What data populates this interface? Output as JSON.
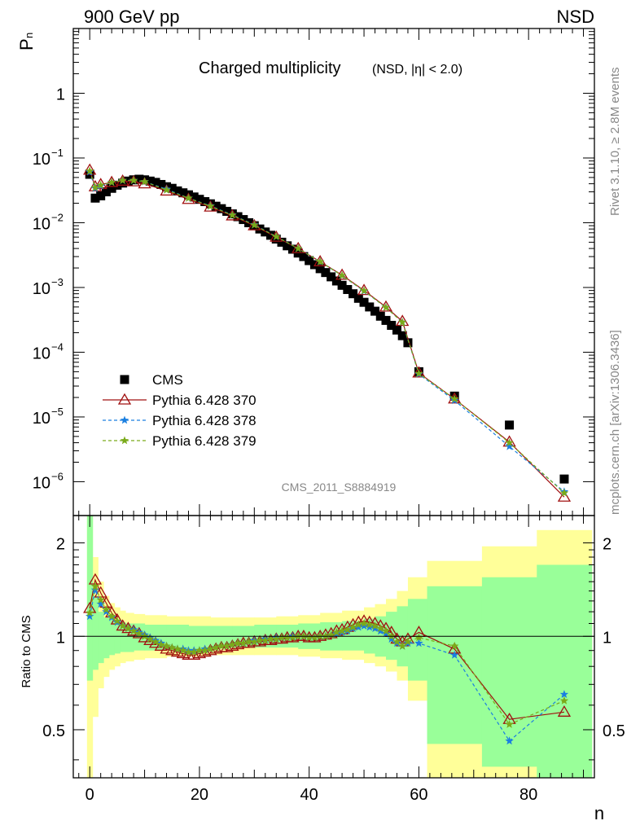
{
  "header": {
    "left": "900 GeV pp",
    "right": "NSD",
    "title_main": "Charged multiplicity",
    "title_sub": "(NSD, |η| < 2.0)",
    "ylabel_main": "P",
    "ylabel_sub": "n",
    "side_rivet": "Rivet 3.1.10, ≥ 2.8M events",
    "side_mcplots": "mcplots.cern.ch [arXiv:1306.3436]",
    "analysis_id": "CMS_2011_S8884919"
  },
  "colors": {
    "cms": "#000000",
    "p370": "#a01010",
    "p378": "#1a7fe0",
    "p379": "#7aaa1a",
    "band_yellow": "#ffff99",
    "band_green": "#99ff99"
  },
  "legend": [
    {
      "label": "CMS",
      "key": "cms",
      "marker": "square"
    },
    {
      "label": "Pythia 6.428 370",
      "key": "p370",
      "marker": "triangle"
    },
    {
      "label": "Pythia 6.428 378",
      "key": "p378",
      "marker": "star"
    },
    {
      "label": "Pythia 6.428 379",
      "key": "p379",
      "marker": "star"
    }
  ],
  "chart_data": [
    {
      "type": "scatter",
      "yscale": "log",
      "xlim": [
        -3,
        92
      ],
      "ylim": [
        3e-07,
        10
      ],
      "xticks": [
        0,
        20,
        40,
        60,
        80
      ],
      "xtick_labels": [
        "0",
        "20",
        "40",
        "60",
        "80"
      ],
      "yticks": [
        1,
        0.1,
        0.01,
        0.001,
        0.0001,
        1e-05,
        1e-06
      ],
      "ytick_base": [
        "1",
        "10",
        "10",
        "10",
        "10",
        "10",
        "10"
      ],
      "ytick_exp": [
        "",
        "−1",
        "−2",
        "−3",
        "−4",
        "−5",
        "−6"
      ],
      "series": [
        {
          "name": "CMS",
          "key": "cms",
          "x": [
            0,
            1,
            2,
            3,
            4,
            5,
            6,
            7,
            8,
            9,
            10,
            11,
            12,
            13,
            14,
            15,
            16,
            17,
            18,
            19,
            20,
            21,
            22,
            23,
            24,
            25,
            26,
            27,
            28,
            29,
            30,
            31,
            32,
            33,
            34,
            35,
            36,
            37,
            38,
            39,
            40,
            41,
            42,
            43,
            44,
            45,
            46,
            47,
            48,
            49,
            50,
            51,
            52,
            53,
            54,
            55,
            56,
            57,
            58,
            60,
            66.5,
            76.5,
            86.5
          ],
          "y": [
            0.056,
            0.024,
            0.026,
            0.03,
            0.034,
            0.038,
            0.041,
            0.044,
            0.046,
            0.047,
            0.046,
            0.044,
            0.042,
            0.039,
            0.036,
            0.034,
            0.031,
            0.029,
            0.027,
            0.025,
            0.023,
            0.0212,
            0.0196,
            0.018,
            0.0165,
            0.015,
            0.0137,
            0.0124,
            0.0112,
            0.01,
            0.009,
            0.008,
            0.0072,
            0.0064,
            0.0056,
            0.005,
            0.0044,
            0.0039,
            0.0034,
            0.003,
            0.0026,
            0.00225,
            0.00195,
            0.0017,
            0.00146,
            0.00126,
            0.00108,
            0.00093,
            0.0008,
            0.00068,
            0.00059,
            0.0005,
            0.00043,
            0.00036,
            0.00031,
            0.00026,
            0.00022,
            0.00018,
            0.00014,
            5e-05,
            2.1e-05,
            7.5e-06,
            1.1e-06
          ]
        },
        {
          "name": "Pythia 6.428 370",
          "key": "p370",
          "x": [
            0,
            1,
            2,
            4,
            6,
            8,
            10,
            14,
            18,
            22,
            26,
            30,
            34,
            38,
            42,
            46,
            50,
            54,
            57,
            60,
            66.5,
            76.5,
            86.5
          ],
          "y": [
            0.065,
            0.036,
            0.039,
            0.042,
            0.044,
            0.043,
            0.04,
            0.031,
            0.023,
            0.0175,
            0.0128,
            0.009,
            0.006,
            0.004,
            0.0025,
            0.00155,
            0.0009,
            0.0005,
            0.0003,
            4.8e-05,
            1.9e-05,
            4.1e-06,
            5.8e-07
          ]
        },
        {
          "name": "Pythia 6.428 378",
          "key": "p378",
          "x": [
            0,
            1,
            2,
            4,
            6,
            8,
            10,
            14,
            18,
            22,
            26,
            30,
            34,
            38,
            42,
            46,
            50,
            54,
            57,
            60,
            66.5,
            76.5,
            86.5
          ],
          "y": [
            0.061,
            0.034,
            0.037,
            0.042,
            0.045,
            0.045,
            0.043,
            0.033,
            0.024,
            0.0182,
            0.0132,
            0.0093,
            0.0061,
            0.004,
            0.0025,
            0.00152,
            0.00088,
            0.00049,
            0.00029,
            4.6e-05,
            1.8e-05,
            3.5e-06,
            7e-07
          ]
        },
        {
          "name": "Pythia 6.428 379",
          "key": "p379",
          "x": [
            0,
            1,
            2,
            4,
            6,
            8,
            10,
            14,
            18,
            22,
            26,
            30,
            34,
            38,
            42,
            46,
            50,
            54,
            57,
            60,
            66.5,
            76.5,
            86.5
          ],
          "y": [
            0.063,
            0.035,
            0.038,
            0.042,
            0.045,
            0.045,
            0.043,
            0.032,
            0.024,
            0.018,
            0.0131,
            0.0092,
            0.0061,
            0.004,
            0.0025,
            0.00153,
            0.00089,
            0.00049,
            0.00029,
            4.7e-05,
            1.9e-05,
            4e-06,
            6.7e-07
          ]
        }
      ]
    },
    {
      "type": "line",
      "ylabel": "Ratio to CMS",
      "xlabel": "n",
      "yscale": "log",
      "xlim": [
        -3,
        92
      ],
      "ylim": [
        0.35,
        2.45
      ],
      "xticks": [
        0,
        20,
        40,
        60,
        80
      ],
      "xtick_labels": [
        "0",
        "20",
        "40",
        "60",
        "80"
      ],
      "yticks": [
        0.5,
        1,
        2
      ],
      "ytick_labels": [
        "0.5",
        "1",
        "2"
      ],
      "bands": {
        "x_edges": [
          -0.5,
          0.5,
          1.5,
          2.5,
          3.5,
          4.5,
          5.5,
          6.5,
          8,
          10,
          14,
          18,
          22,
          26,
          30,
          34,
          38,
          42,
          46,
          50,
          52,
          54,
          56,
          58,
          61.5,
          71.5,
          81.5,
          91.5
        ],
        "yellow_lo": [
          0.3,
          0.55,
          0.68,
          0.74,
          0.78,
          0.8,
          0.82,
          0.83,
          0.84,
          0.85,
          0.86,
          0.86,
          0.87,
          0.87,
          0.87,
          0.87,
          0.86,
          0.85,
          0.84,
          0.82,
          0.8,
          0.77,
          0.72,
          0.62,
          0.3,
          0.3,
          0.3
        ],
        "yellow_hi": [
          2.5,
          1.8,
          1.5,
          1.35,
          1.28,
          1.24,
          1.21,
          1.19,
          1.18,
          1.17,
          1.16,
          1.16,
          1.15,
          1.15,
          1.15,
          1.16,
          1.17,
          1.19,
          1.21,
          1.24,
          1.27,
          1.32,
          1.4,
          1.55,
          1.75,
          1.95,
          2.2
        ],
        "green_lo": [
          0.72,
          0.78,
          0.82,
          0.85,
          0.87,
          0.88,
          0.89,
          0.89,
          0.9,
          0.9,
          0.91,
          0.91,
          0.92,
          0.92,
          0.92,
          0.92,
          0.91,
          0.9,
          0.9,
          0.88,
          0.86,
          0.84,
          0.8,
          0.72,
          0.45,
          0.38,
          0.35
        ],
        "green_hi": [
          2.5,
          1.35,
          1.2,
          1.15,
          1.13,
          1.12,
          1.11,
          1.1,
          1.1,
          1.09,
          1.09,
          1.08,
          1.08,
          1.08,
          1.09,
          1.09,
          1.1,
          1.11,
          1.12,
          1.14,
          1.16,
          1.2,
          1.25,
          1.32,
          1.45,
          1.55,
          1.7
        ]
      },
      "series": [
        {
          "name": "Pythia 6.428 370",
          "key": "p370",
          "x": [
            0,
            1,
            2,
            3,
            4,
            5,
            6,
            7,
            8,
            9,
            10,
            11,
            12,
            13,
            14,
            15,
            16,
            17,
            18,
            19,
            20,
            21,
            22,
            23,
            24,
            25,
            26,
            27,
            28,
            29,
            30,
            31,
            32,
            33,
            34,
            35,
            36,
            37,
            38,
            39,
            40,
            41,
            42,
            43,
            44,
            45,
            46,
            47,
            48,
            49,
            50,
            51,
            52,
            53,
            54,
            55,
            56,
            57,
            58,
            60,
            66.5,
            76.5,
            86.5
          ],
          "y": [
            1.23,
            1.52,
            1.38,
            1.28,
            1.19,
            1.13,
            1.08,
            1.06,
            1.04,
            1.02,
            0.99,
            0.97,
            0.95,
            0.93,
            0.91,
            0.9,
            0.89,
            0.88,
            0.87,
            0.87,
            0.88,
            0.89,
            0.9,
            0.91,
            0.92,
            0.92,
            0.93,
            0.94,
            0.95,
            0.95,
            0.96,
            0.96,
            0.97,
            0.97,
            0.98,
            0.98,
            0.99,
            0.99,
            1.0,
            1.0,
            0.99,
            0.99,
            1.0,
            1.01,
            1.02,
            1.04,
            1.05,
            1.07,
            1.09,
            1.11,
            1.12,
            1.11,
            1.1,
            1.08,
            1.06,
            1.03,
            0.98,
            0.96,
            0.98,
            1.03,
            0.91,
            0.54,
            0.57
          ]
        },
        {
          "name": "Pythia 6.428 378",
          "key": "p378",
          "x": [
            0,
            1,
            2,
            3,
            4,
            5,
            6,
            7,
            8,
            9,
            10,
            11,
            12,
            13,
            14,
            15,
            16,
            17,
            18,
            19,
            20,
            21,
            22,
            23,
            24,
            25,
            26,
            27,
            28,
            29,
            30,
            31,
            32,
            33,
            34,
            35,
            36,
            37,
            38,
            39,
            40,
            41,
            42,
            43,
            44,
            45,
            46,
            47,
            48,
            49,
            50,
            51,
            52,
            53,
            54,
            55,
            56,
            57,
            58,
            60,
            66.5,
            76.5,
            86.5
          ],
          "y": [
            1.16,
            1.41,
            1.27,
            1.2,
            1.15,
            1.11,
            1.08,
            1.06,
            1.05,
            1.03,
            1.01,
            0.99,
            0.97,
            0.95,
            0.93,
            0.92,
            0.91,
            0.91,
            0.9,
            0.9,
            0.9,
            0.91,
            0.91,
            0.92,
            0.93,
            0.93,
            0.94,
            0.95,
            0.95,
            0.96,
            0.97,
            0.97,
            0.98,
            0.98,
            0.99,
            0.99,
            0.99,
            1.0,
            1.0,
            1.0,
            0.99,
            0.99,
            1.0,
            1.0,
            1.01,
            1.02,
            1.03,
            1.04,
            1.06,
            1.07,
            1.08,
            1.07,
            1.06,
            1.04,
            1.02,
            0.98,
            0.95,
            0.93,
            0.95,
            0.95,
            0.87,
            0.46,
            0.65
          ]
        },
        {
          "name": "Pythia 6.428 379",
          "key": "p379",
          "x": [
            0,
            1,
            2,
            3,
            4,
            5,
            6,
            7,
            8,
            9,
            10,
            11,
            12,
            13,
            14,
            15,
            16,
            17,
            18,
            19,
            20,
            21,
            22,
            23,
            24,
            25,
            26,
            27,
            28,
            29,
            30,
            31,
            32,
            33,
            34,
            35,
            36,
            37,
            38,
            39,
            40,
            41,
            42,
            43,
            44,
            45,
            46,
            47,
            48,
            49,
            50,
            51,
            52,
            53,
            54,
            55,
            56,
            57,
            58,
            60,
            66.5,
            76.5,
            86.5
          ],
          "y": [
            1.19,
            1.45,
            1.31,
            1.22,
            1.16,
            1.12,
            1.08,
            1.06,
            1.04,
            1.02,
            1.0,
            0.98,
            0.96,
            0.94,
            0.93,
            0.92,
            0.91,
            0.9,
            0.89,
            0.89,
            0.9,
            0.9,
            0.91,
            0.92,
            0.93,
            0.93,
            0.94,
            0.95,
            0.95,
            0.96,
            0.96,
            0.97,
            0.97,
            0.98,
            0.98,
            0.99,
            0.99,
            0.99,
            1.0,
            1.0,
            0.99,
            0.99,
            1.0,
            1.0,
            1.01,
            1.03,
            1.04,
            1.05,
            1.07,
            1.09,
            1.1,
            1.09,
            1.08,
            1.06,
            1.04,
            1.0,
            0.96,
            0.93,
            0.96,
            0.99,
            0.93,
            0.52,
            0.62
          ]
        }
      ]
    }
  ]
}
